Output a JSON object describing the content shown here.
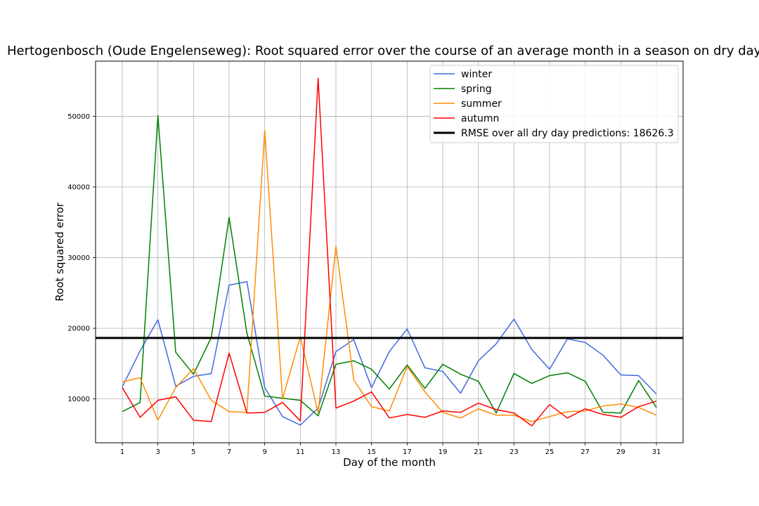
{
  "chart_data": {
    "type": "line",
    "title": "Hertogenbosch (Oude Engelenseweg): Root squared error over the course of an average month in a season on dry days",
    "xlabel": "Day of the month",
    "ylabel": "Root squared error",
    "xlim": [
      -0.5,
      32.5
    ],
    "ylim": [
      3800,
      57800
    ],
    "xticks": [
      1,
      3,
      5,
      7,
      9,
      11,
      13,
      15,
      17,
      19,
      21,
      23,
      25,
      27,
      29,
      31
    ],
    "yticks": [
      10000,
      20000,
      30000,
      40000,
      50000
    ],
    "grid": true,
    "legend_position": "top-right",
    "x": [
      1,
      2,
      3,
      4,
      5,
      6,
      7,
      8,
      9,
      10,
      11,
      12,
      13,
      14,
      15,
      16,
      17,
      18,
      19,
      20,
      21,
      22,
      23,
      24,
      25,
      26,
      27,
      28,
      29,
      30,
      31
    ],
    "series": [
      {
        "name": "winter",
        "color": "#4169e1",
        "values": [
          11700,
          16800,
          21200,
          11800,
          13200,
          13600,
          26100,
          26600,
          11600,
          7500,
          6300,
          8700,
          16700,
          18400,
          11600,
          16700,
          19900,
          14400,
          13900,
          10800,
          15400,
          17800,
          21300,
          17000,
          14200,
          18500,
          18000,
          16200,
          13400,
          13300,
          10700
        ]
      },
      {
        "name": "spring",
        "color": "#008000",
        "values": [
          8200,
          9500,
          50100,
          16600,
          13500,
          18700,
          35700,
          19300,
          10400,
          10100,
          9800,
          7600,
          14900,
          15400,
          14200,
          11400,
          14800,
          11500,
          14900,
          13500,
          12500,
          8000,
          13600,
          12200,
          13300,
          13700,
          12500,
          8100,
          8000,
          12600,
          8800
        ]
      },
      {
        "name": "summer",
        "color": "#ff8c00",
        "values": [
          12400,
          13000,
          7000,
          11600,
          14300,
          9800,
          8200,
          8100,
          48000,
          10000,
          18800,
          8000,
          31600,
          12700,
          8900,
          8300,
          14600,
          11000,
          8100,
          7300,
          8600,
          7700,
          7700,
          6800,
          7500,
          8200,
          8300,
          9000,
          9300,
          8800,
          7700
        ]
      },
      {
        "name": "autumn",
        "color": "#ff0000",
        "values": [
          11600,
          7400,
          9800,
          10300,
          7000,
          6800,
          16500,
          8000,
          8100,
          9500,
          6900,
          55400,
          8700,
          9700,
          11000,
          7300,
          7800,
          7400,
          8300,
          8100,
          9400,
          8500,
          8000,
          6200,
          9200,
          7300,
          8600,
          7800,
          7400,
          8900,
          9700
        ]
      }
    ],
    "reference_line": {
      "label": "RMSE over all dry day predictions: 18626.3",
      "value": 18626.3,
      "color": "#000000"
    }
  }
}
